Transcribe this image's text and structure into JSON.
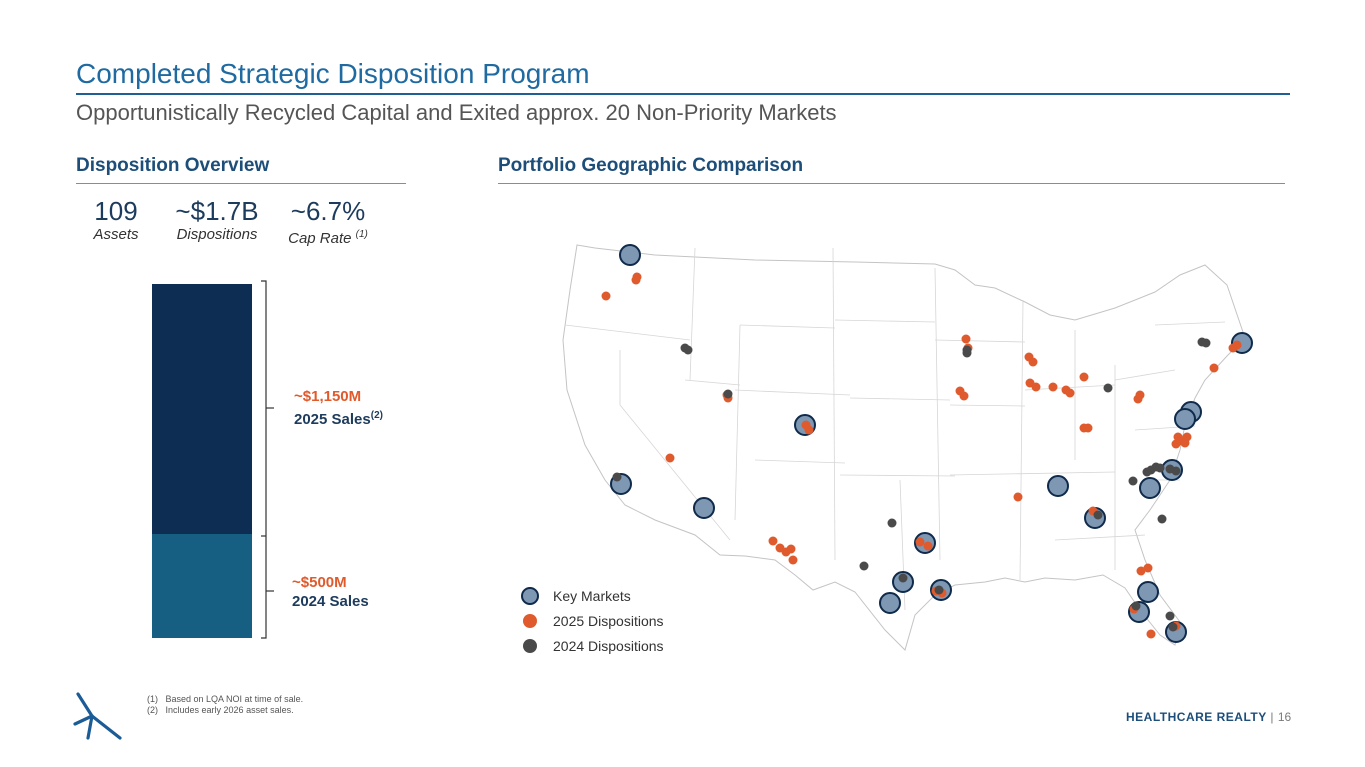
{
  "header": {
    "title": "Completed Strategic Disposition Program",
    "subtitle": "Opportunistically Recycled Capital and Exited approx. 20 Non-Priority Markets"
  },
  "overview": {
    "heading": "Disposition Overview",
    "stats": [
      {
        "value": "109",
        "label": "Assets"
      },
      {
        "value": "~$1.7B",
        "label": "Dispositions"
      },
      {
        "value": "~6.7%",
        "label": "Cap Rate",
        "footnote_ref": "(1)"
      }
    ],
    "bars": [
      {
        "amount": "~$1,150M",
        "year_label": "2025 Sales",
        "footnote_ref": "(2)",
        "value_musd": 1150,
        "color": "#0e2d52"
      },
      {
        "amount": "~$500M",
        "year_label": "2024 Sales",
        "footnote_ref": "",
        "value_musd": 500,
        "color": "#175f82"
      }
    ]
  },
  "geography": {
    "heading": "Portfolio Geographic Comparison",
    "legend": {
      "key_markets": "Key Markets",
      "dispositions_2025": "2025 Dispositions",
      "dispositions_2024": "2024 Dispositions"
    },
    "colors": {
      "key_market": "#7e97b3",
      "disp_2025": "#df5a2c",
      "disp_2024": "#4a4a4a"
    }
  },
  "footnotes": [
    {
      "num": "(1)",
      "text": "Based on LQA NOI at time of sale."
    },
    {
      "num": "(2)",
      "text": "Includes early 2026 asset sales."
    }
  ],
  "footer": {
    "brand": "HEALTHCARE REALTY",
    "separator": "|",
    "page": "16"
  }
}
